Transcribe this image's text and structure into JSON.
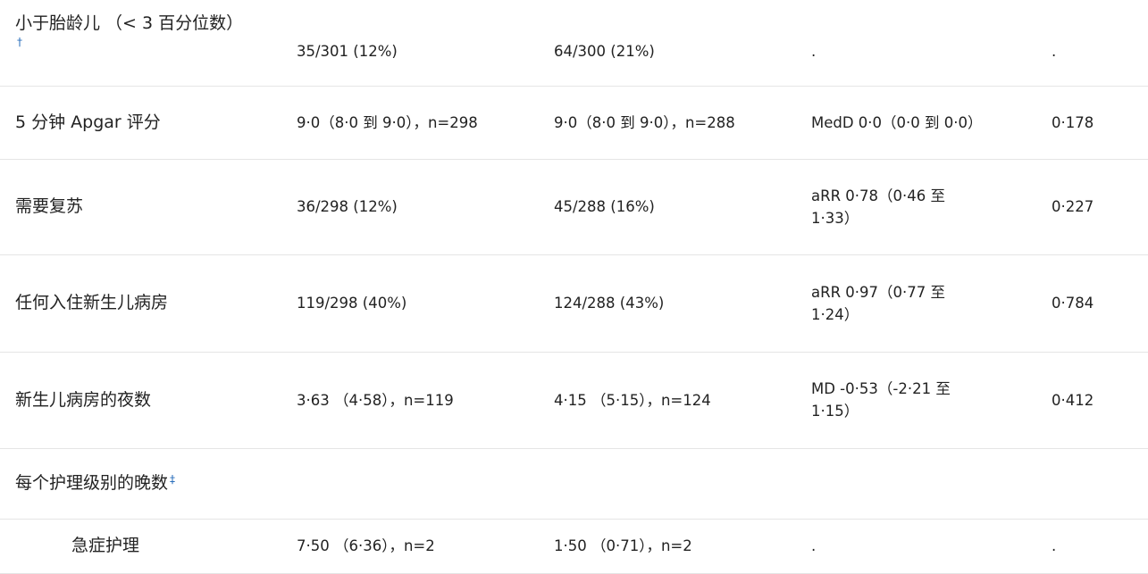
{
  "rows": [
    {
      "label": "小于胎龄儿 （< 3 百分位数）",
      "footnote": "†",
      "intervention": "35/301 (12%)",
      "control": "64/300 (21%)",
      "effect": ".",
      "p": "."
    },
    {
      "label": "5 分钟 Apgar 评分",
      "footnote": "",
      "intervention": "9·0（8·0 到 9·0），n=298",
      "control": "9·0（8·0 到 9·0），n=288",
      "effect": "MedD 0·0（0·0 到 0·0）",
      "p": "0·178"
    },
    {
      "label": "需要复苏",
      "footnote": "",
      "intervention": "36/298 (12%)",
      "control": "45/288 (16%)",
      "effect": "aRR 0·78（0·46 至 1·33）",
      "p": "0·227"
    },
    {
      "label": "任何入住新生儿病房",
      "footnote": "",
      "intervention": "119/298 (40%)",
      "control": "124/288 (43%)",
      "effect": "aRR 0·97（0·77 至 1·24）",
      "p": "0·784"
    },
    {
      "label": "新生儿病房的夜数",
      "footnote": "",
      "intervention": "3·63 （4·58），n=119",
      "control": "4·15 （5·15），n=124",
      "effect": "MD -0·53（-2·21 至 1·15）",
      "p": "0·412"
    },
    {
      "label": "每个护理级别的晚数",
      "footnote": "‡",
      "intervention": "",
      "control": "",
      "effect": "",
      "p": ""
    },
    {
      "label": "急症护理",
      "footnote": "",
      "intervention": "7·50 （6·36），n=2",
      "control": "1·50 （0·71），n=2",
      "effect": ".",
      "p": "."
    }
  ]
}
